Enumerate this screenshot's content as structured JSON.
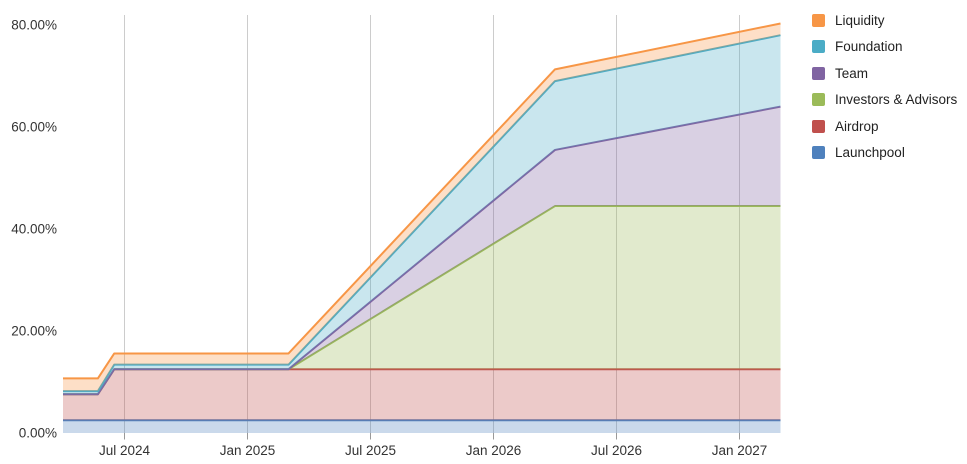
{
  "chart_data": {
    "type": "area",
    "stacked": true,
    "title": "",
    "xlabel": "",
    "ylabel": "",
    "x_unit": "months since Apr 2024",
    "x_range_months": [
      0,
      35
    ],
    "y_range_percent": [
      0,
      82
    ],
    "grid": {
      "vertical": true,
      "horizontal": false,
      "gridline_color": "#cccccc",
      "tick_color": "#999999"
    },
    "fill_opacity": 0.3,
    "x_ticks": [
      {
        "m": 3,
        "label": "Jul 2024"
      },
      {
        "m": 9,
        "label": "Jan 2025"
      },
      {
        "m": 15,
        "label": "Jul 2025"
      },
      {
        "m": 21,
        "label": "Jan 2026"
      },
      {
        "m": 27,
        "label": "Jul 2026"
      },
      {
        "m": 33,
        "label": "Jan 2027"
      }
    ],
    "y_ticks": [
      {
        "v": 0,
        "label": "0.00%"
      },
      {
        "v": 20,
        "label": "20.00%"
      },
      {
        "v": 40,
        "label": "40.00%"
      },
      {
        "v": 60,
        "label": "60.00%"
      },
      {
        "v": 80,
        "label": "80.00%"
      }
    ],
    "breakpoint_months": [
      0,
      1.7,
      2.5,
      11,
      24,
      35
    ],
    "breakpoint_notes": "flat Apr-May 2024, step up Jun 2024, flat to Mar 2025, steep linear vesting to Apr 2026, gentler vesting to Mar 2027",
    "series_bottom_to_top": [
      {
        "name": "Launchpool",
        "color": "#4F81BD",
        "values": [
          2.5,
          2.5,
          2.5,
          2.5,
          2.5,
          2.5
        ]
      },
      {
        "name": "Airdrop",
        "color": "#C0504D",
        "values": [
          5.1,
          5.1,
          10.0,
          10.0,
          10.0,
          10.0
        ]
      },
      {
        "name": "Investors & Advisors",
        "color": "#9BBB59",
        "values": [
          0,
          0,
          0,
          0,
          32.0,
          32.0
        ]
      },
      {
        "name": "Team",
        "color": "#8064A2",
        "values": [
          0,
          0,
          0,
          0,
          11.0,
          19.5
        ]
      },
      {
        "name": "Foundation",
        "color": "#4BACC6",
        "values": [
          0.6,
          0.6,
          0.9,
          0.9,
          13.5,
          14.0
        ]
      },
      {
        "name": "Liquidity",
        "color": "#F79646",
        "values": [
          2.5,
          2.5,
          2.2,
          2.2,
          2.3,
          2.3
        ]
      }
    ],
    "cumulative_top_percent_at_breakpoints": [
      10.7,
      10.7,
      15.6,
      15.6,
      71.3,
      80.3
    ],
    "legend": {
      "position": "top-right",
      "items_top_to_bottom": [
        {
          "label": "Liquidity",
          "color": "#F79646"
        },
        {
          "label": "Foundation",
          "color": "#4BACC6"
        },
        {
          "label": "Team",
          "color": "#8064A2"
        },
        {
          "label": "Investors & Advisors",
          "color": "#9BBB59"
        },
        {
          "label": "Airdrop",
          "color": "#C0504D"
        },
        {
          "label": "Launchpool",
          "color": "#4F81BD"
        }
      ]
    }
  }
}
